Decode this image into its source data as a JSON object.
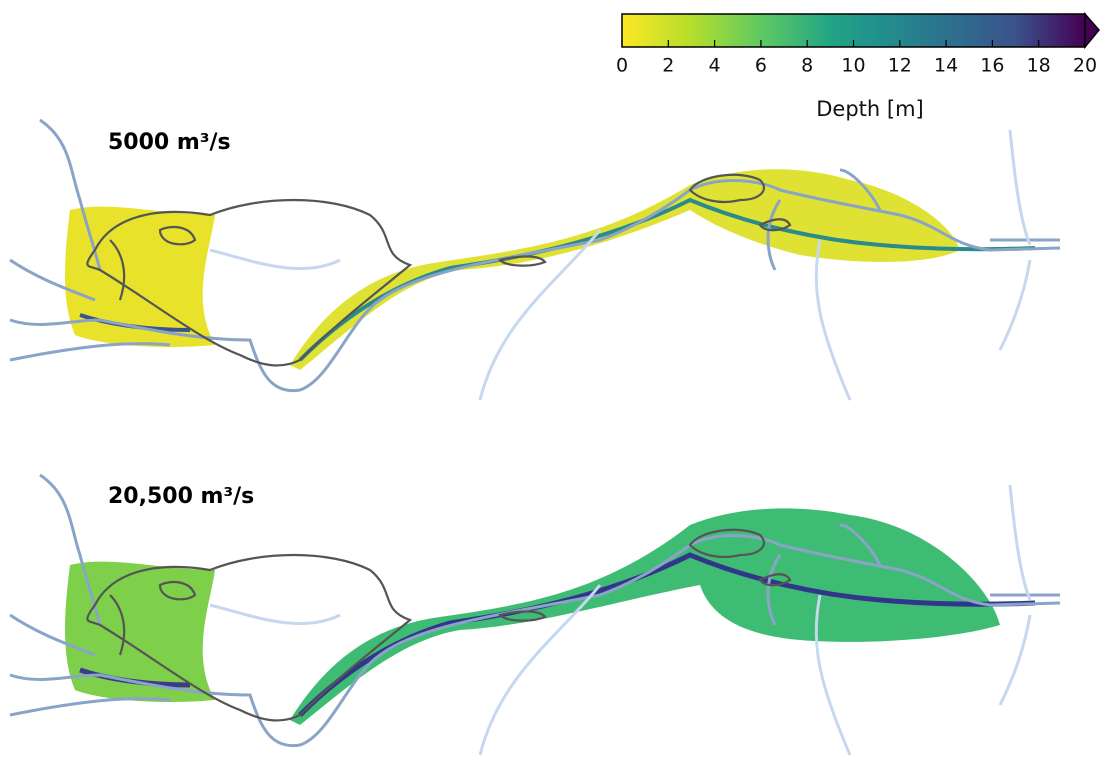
{
  "colorbar": {
    "label": "Depth [m]",
    "lim": [
      0,
      20
    ],
    "ticks": [
      0,
      2,
      4,
      6,
      8,
      10,
      12,
      14,
      16,
      18,
      20
    ]
  },
  "panels": [
    {
      "label": "5000 m³/s"
    },
    {
      "label": "20,500 m³/s"
    }
  ]
}
